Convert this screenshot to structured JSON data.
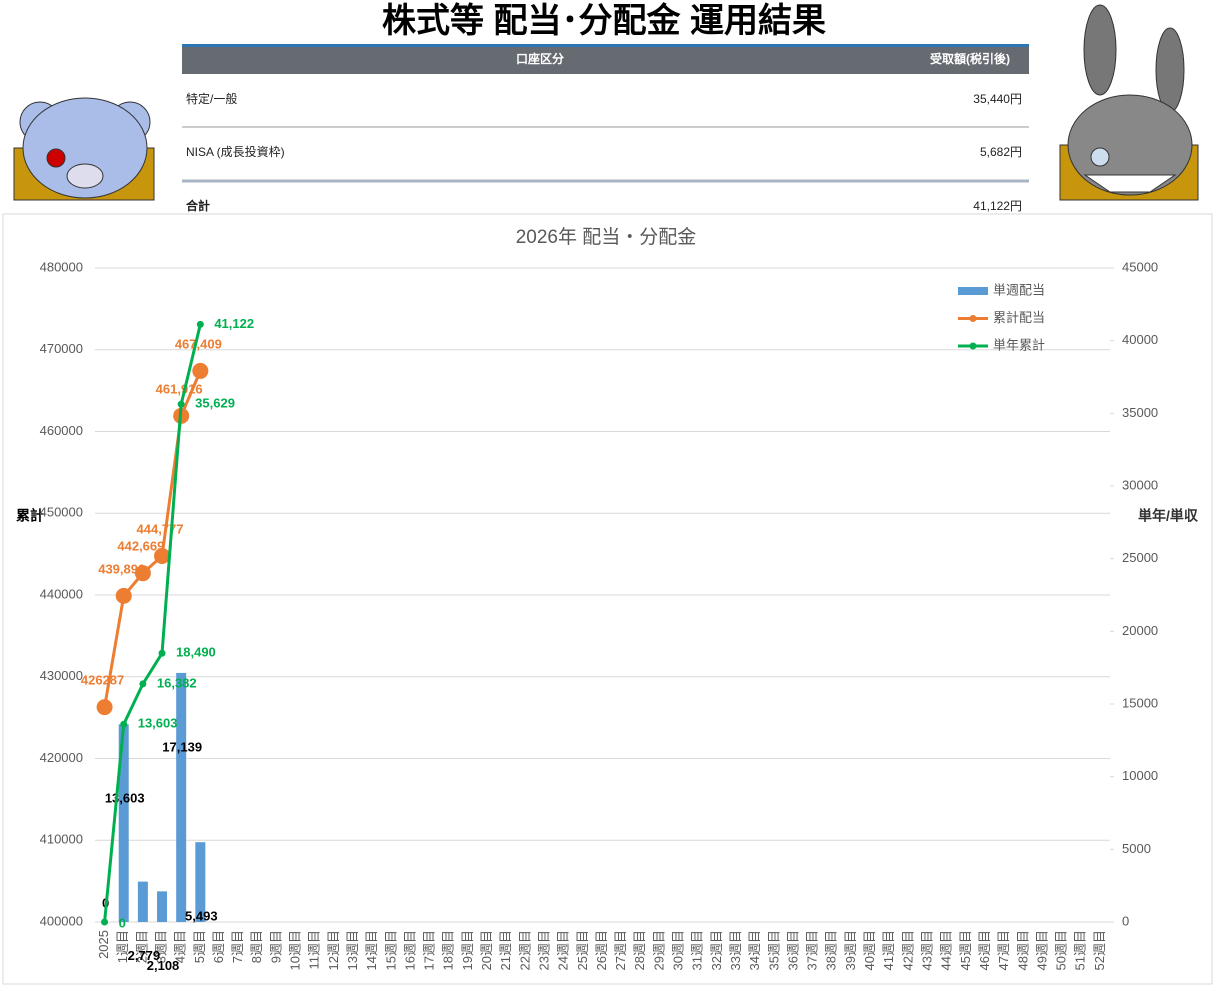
{
  "header": {
    "title": "株式等 配当･分配金 運用結果"
  },
  "table": {
    "columns": [
      "口座区分",
      "受取額(税引後)"
    ],
    "rows": [
      [
        "特定/一般",
        "35,440円"
      ],
      [
        "NISA (成長投資枠)",
        "5,682円"
      ],
      [
        "合計",
        "41,122円"
      ]
    ]
  },
  "chart_data": {
    "type": "bar",
    "title": "2026年 配当・分配金",
    "ylabel": "累計",
    "y2label": "単年/単収",
    "ylim": [
      400000,
      480000
    ],
    "yticks": [
      400000,
      410000,
      420000,
      430000,
      440000,
      450000,
      460000,
      470000,
      480000
    ],
    "y2lim": [
      0,
      45000
    ],
    "y2ticks": [
      0,
      5000,
      10000,
      15000,
      20000,
      25000,
      30000,
      35000,
      40000,
      45000
    ],
    "legend": "upper right",
    "categories": [
      "2025",
      "1週目",
      "2週目",
      "3週目",
      "4週目",
      "5週目",
      "6週目",
      "7週目",
      "8週目",
      "9週目",
      "10週目",
      "11週目",
      "12週目",
      "13週目",
      "14週目",
      "15週目",
      "16週目",
      "17週目",
      "18週目",
      "19週目",
      "20週目",
      "21週目",
      "22週目",
      "23週目",
      "24週目",
      "25週目",
      "26週目",
      "27週目",
      "28週目",
      "29週目",
      "30週目",
      "31週目",
      "32週目",
      "33週目",
      "34週目",
      "35週目",
      "36週目",
      "37週目",
      "38週目",
      "39週目",
      "40週目",
      "41週目",
      "42週目",
      "43週目",
      "44週目",
      "45週目",
      "46週目",
      "47週目",
      "48週目",
      "49週目",
      "50週目",
      "51週目",
      "52週目"
    ],
    "series": [
      {
        "name": "単週配当",
        "type": "bar",
        "axis": "y2",
        "color": "#5b9bd5",
        "values": [
          0,
          13603,
          2779,
          2108,
          17139,
          5493,
          null,
          null,
          null,
          null,
          null,
          null,
          null,
          null,
          null,
          null,
          null,
          null,
          null,
          null,
          null,
          null,
          null,
          null,
          null,
          null,
          null,
          null,
          null,
          null,
          null,
          null,
          null,
          null,
          null,
          null,
          null,
          null,
          null,
          null,
          null,
          null,
          null,
          null,
          null,
          null,
          null,
          null,
          null,
          null,
          null,
          null,
          null
        ],
        "value_labels": [
          "0",
          "13,603",
          "2,779",
          "2,108",
          "17,139",
          "5,493",
          null,
          null,
          null,
          null,
          null,
          null,
          null,
          null,
          null,
          null,
          null,
          null,
          null,
          null,
          null,
          null,
          null,
          null,
          null,
          null,
          null,
          null,
          null,
          null,
          null,
          null,
          null,
          null,
          null,
          null,
          null,
          null,
          null,
          null,
          null,
          null,
          null,
          null,
          null,
          null,
          null,
          null,
          null,
          null,
          null,
          null,
          null
        ]
      },
      {
        "name": "累計配当",
        "type": "line",
        "color": "#ed7d31",
        "values": [
          426287,
          439890,
          442669,
          444777,
          461916,
          467409,
          null,
          null,
          null,
          null,
          null,
          null,
          null,
          null,
          null,
          null,
          null,
          null,
          null,
          null,
          null,
          null,
          null,
          null,
          null,
          null,
          null,
          null,
          null,
          null,
          null,
          null,
          null,
          null,
          null,
          null,
          null,
          null,
          null,
          null,
          null,
          null,
          null,
          null,
          null,
          null,
          null,
          null,
          null,
          null,
          null,
          null,
          null
        ],
        "value_labels": [
          "426287",
          "439,890",
          "442,669",
          "444,777",
          "461,916",
          "467,409",
          null,
          null,
          null,
          null,
          null,
          null,
          null,
          null,
          null,
          null,
          null,
          null,
          null,
          null,
          null,
          null,
          null,
          null,
          null,
          null,
          null,
          null,
          null,
          null,
          null,
          null,
          null,
          null,
          null,
          null,
          null,
          null,
          null,
          null,
          null,
          null,
          null,
          null,
          null,
          null,
          null,
          null,
          null,
          null,
          null,
          null,
          null
        ]
      },
      {
        "name": "単年累計",
        "type": "line",
        "axis": "y2",
        "color": "#00b050",
        "values": [
          0,
          13603,
          16382,
          18490,
          35629,
          41122,
          null,
          null,
          null,
          null,
          null,
          null,
          null,
          null,
          null,
          null,
          null,
          null,
          null,
          null,
          null,
          null,
          null,
          null,
          null,
          null,
          null,
          null,
          null,
          null,
          null,
          null,
          null,
          null,
          null,
          null,
          null,
          null,
          null,
          null,
          null,
          null,
          null,
          null,
          null,
          null,
          null,
          null,
          null,
          null,
          null,
          null,
          null
        ],
        "value_labels": [
          "0",
          "13,603",
          "16,382",
          "18,490",
          "35,629",
          "41,122",
          null,
          null,
          null,
          null,
          null,
          null,
          null,
          null,
          null,
          null,
          null,
          null,
          null,
          null,
          null,
          null,
          null,
          null,
          null,
          null,
          null,
          null,
          null,
          null,
          null,
          null,
          null,
          null,
          null,
          null,
          null,
          null,
          null,
          null,
          null,
          null,
          null,
          null,
          null,
          null,
          null,
          null,
          null,
          null,
          null,
          null,
          null
        ]
      }
    ]
  }
}
